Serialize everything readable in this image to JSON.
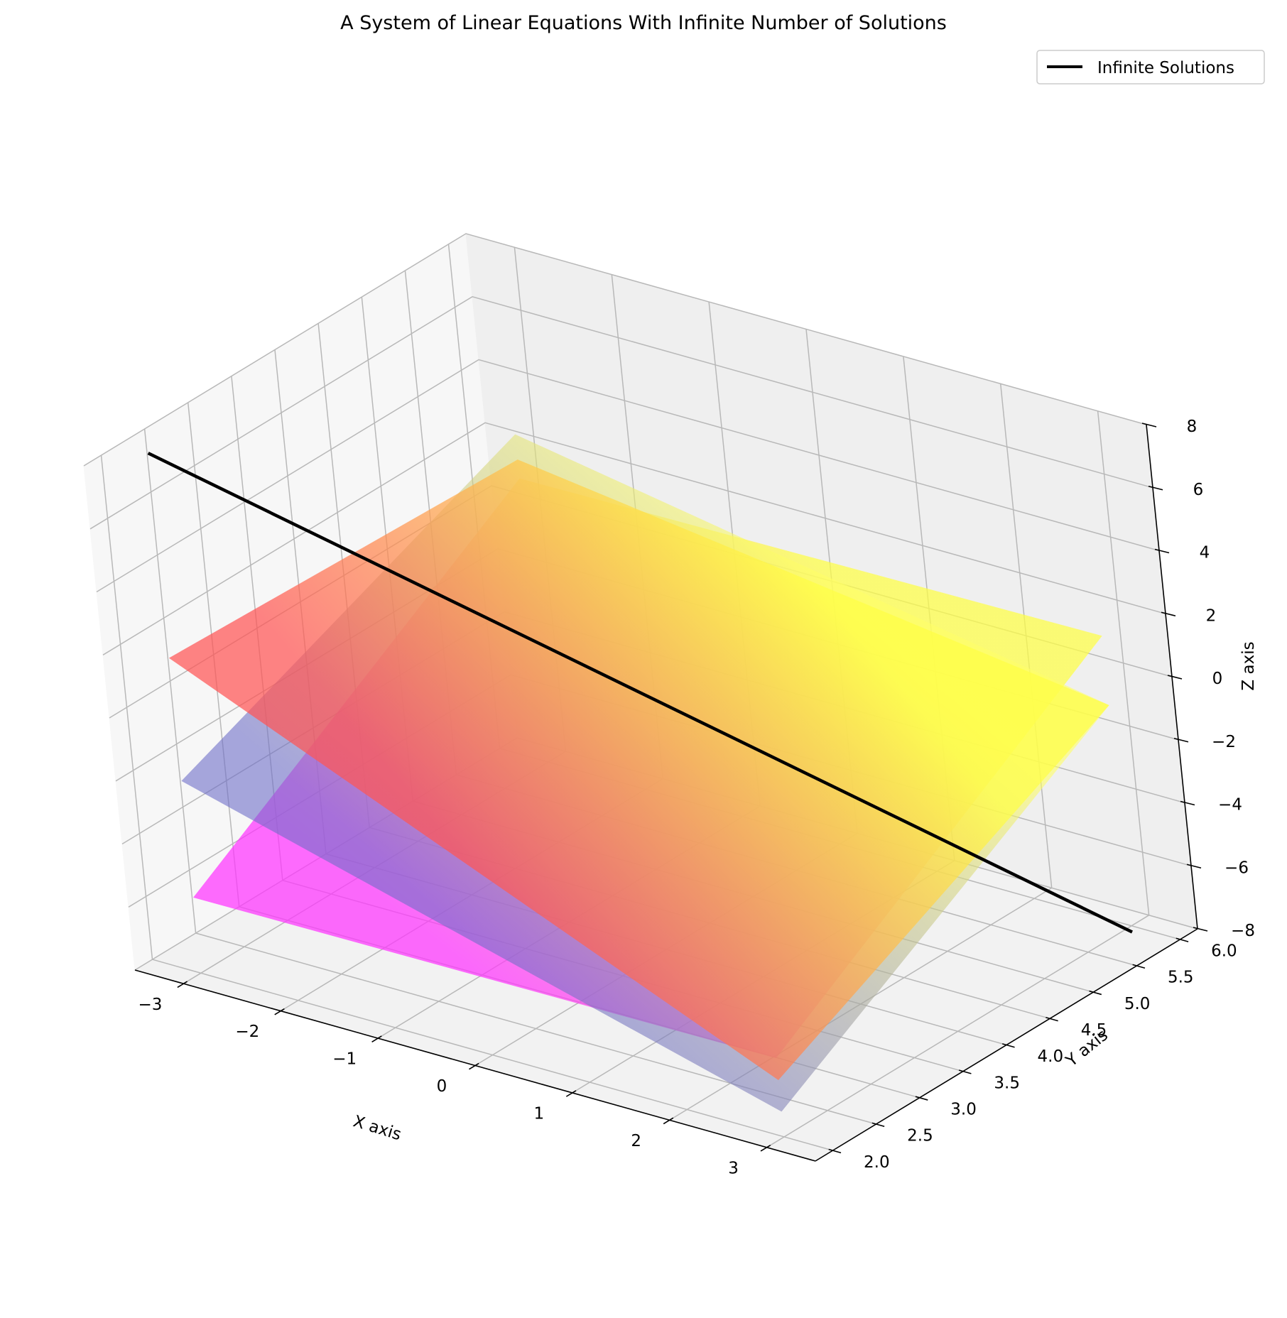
{
  "chart_data": {
    "type": "surface3d",
    "title": "A System of Linear Equations With Infinite Number of Solutions",
    "xlabel": "X axis",
    "ylabel": "Y axis",
    "zlabel": "Z axis",
    "xlim": [
      -3.5,
      3.5
    ],
    "ylim": [
      1.8,
      6.2
    ],
    "zlim": [
      -8,
      8
    ],
    "xticks": [
      -3,
      -2,
      -1,
      0,
      1,
      2,
      3
    ],
    "xtick_labels": [
      "−3",
      "−2",
      "−1",
      "0",
      "1",
      "2",
      "3"
    ],
    "yticks": [
      2.0,
      2.5,
      3.0,
      3.5,
      4.0,
      4.5,
      5.0,
      5.5,
      6.0
    ],
    "ytick_labels": [
      "2.0",
      "2.5",
      "3.0",
      "3.5",
      "4.0",
      "4.5",
      "5.0",
      "5.5",
      "6.0"
    ],
    "zticks": [
      -8,
      -6,
      -4,
      -2,
      0,
      2,
      4,
      6,
      8
    ],
    "ztick_labels": [
      "−8",
      "−6",
      "−4",
      "−2",
      "0",
      "2",
      "4",
      "6",
      "8"
    ],
    "grid": true,
    "legend": {
      "placement": "top-right",
      "entries": [
        "Infinite Solutions"
      ]
    },
    "surfaces": [
      {
        "x_range": [
          -3,
          3
        ],
        "y_range": [
          2,
          6
        ],
        "corner_z": {
          "x_min_y_min": -5.6,
          "x_min_y_max": 1.0,
          "x_max_y_min": -5.5,
          "x_max_y_max": 1.2
        },
        "colors": [
          "#ff33ff",
          "#ffff44"
        ],
        "opacity": 0.72
      },
      {
        "x_range": [
          -3,
          3
        ],
        "y_range": [
          2,
          6
        ],
        "corner_z": {
          "x_min_y_min": -1.9,
          "x_min_y_max": 2.4,
          "x_max_y_min": -7.2,
          "x_max_y_max": -1.0
        },
        "colors": [
          "#6e6ec8",
          "#ffff66"
        ],
        "opacity": 0.6
      },
      {
        "x_range": [
          -3,
          3
        ],
        "y_range": [
          2,
          6
        ],
        "corner_z": {
          "x_min_y_min": 2.0,
          "x_min_y_max": 1.6,
          "x_max_y_min": -6.2,
          "x_max_y_max": -1.0
        },
        "colors": [
          "#ff5555",
          "#ffff44"
        ],
        "opacity": 0.72
      }
    ],
    "line": {
      "name": "Infinite Solutions",
      "color": "#000000",
      "points": [
        [
          -3,
          2,
          8.5
        ],
        [
          3,
          6,
          -8.2
        ]
      ]
    }
  }
}
